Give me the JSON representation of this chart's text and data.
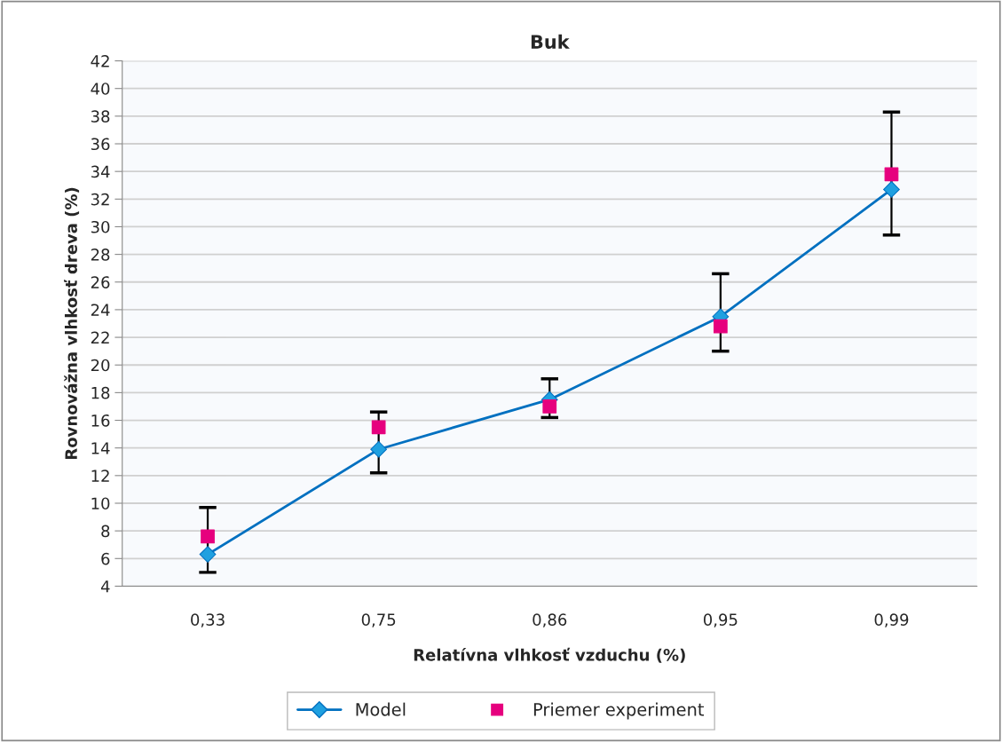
{
  "chart_data": {
    "type": "line",
    "title": "Buk",
    "xlabel": "Relatívna vlhkosť vzduchu (%)",
    "ylabel": "Rovnovážna vlhkosť dreva (%)",
    "categories": [
      "0,33",
      "0,75",
      "0,86",
      "0,95",
      "0,99"
    ],
    "series": [
      {
        "name": "Model",
        "color": "#0070c0",
        "marker": "diamond",
        "values": [
          6.3,
          13.9,
          17.5,
          23.5,
          32.7
        ]
      },
      {
        "name": "Priemer experiment",
        "type": "scatter",
        "color": "#e6007e",
        "marker": "square",
        "values": [
          7.6,
          15.5,
          17.0,
          22.8,
          33.8
        ],
        "errors": [
          [
            5.0,
            9.7
          ],
          [
            12.2,
            16.6
          ],
          [
            16.2,
            19.0
          ],
          [
            21.0,
            26.6
          ],
          [
            29.4,
            38.3
          ]
        ]
      }
    ],
    "ylim": [
      4,
      42
    ],
    "yticks": [
      4,
      6,
      8,
      10,
      12,
      14,
      16,
      18,
      20,
      22,
      24,
      26,
      28,
      30,
      32,
      34,
      36,
      38,
      40,
      42
    ],
    "grid": "y",
    "legend": "bottom"
  }
}
